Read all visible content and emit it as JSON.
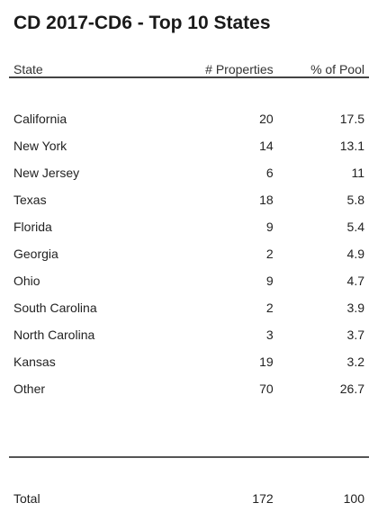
{
  "title": "CD 2017-CD6 - Top 10 States",
  "table": {
    "headers": {
      "state": "State",
      "properties": "# Properties",
      "pool": "% of Pool"
    },
    "rows": [
      {
        "state": "California",
        "properties": "20",
        "pool": "17.5"
      },
      {
        "state": "New York",
        "properties": "14",
        "pool": "13.1"
      },
      {
        "state": "New Jersey",
        "properties": "6",
        "pool": "11"
      },
      {
        "state": "Texas",
        "properties": "18",
        "pool": "5.8"
      },
      {
        "state": "Florida",
        "properties": "9",
        "pool": "5.4"
      },
      {
        "state": "Georgia",
        "properties": "2",
        "pool": "4.9"
      },
      {
        "state": "Ohio",
        "properties": "9",
        "pool": "4.7"
      },
      {
        "state": "South Carolina",
        "properties": "2",
        "pool": "3.9"
      },
      {
        "state": "North Carolina",
        "properties": "3",
        "pool": "3.7"
      },
      {
        "state": "Kansas",
        "properties": "19",
        "pool": "3.2"
      },
      {
        "state": "Other",
        "properties": "70",
        "pool": "26.7"
      }
    ],
    "total": {
      "state": "Total",
      "properties": "172",
      "pool": "100"
    }
  }
}
